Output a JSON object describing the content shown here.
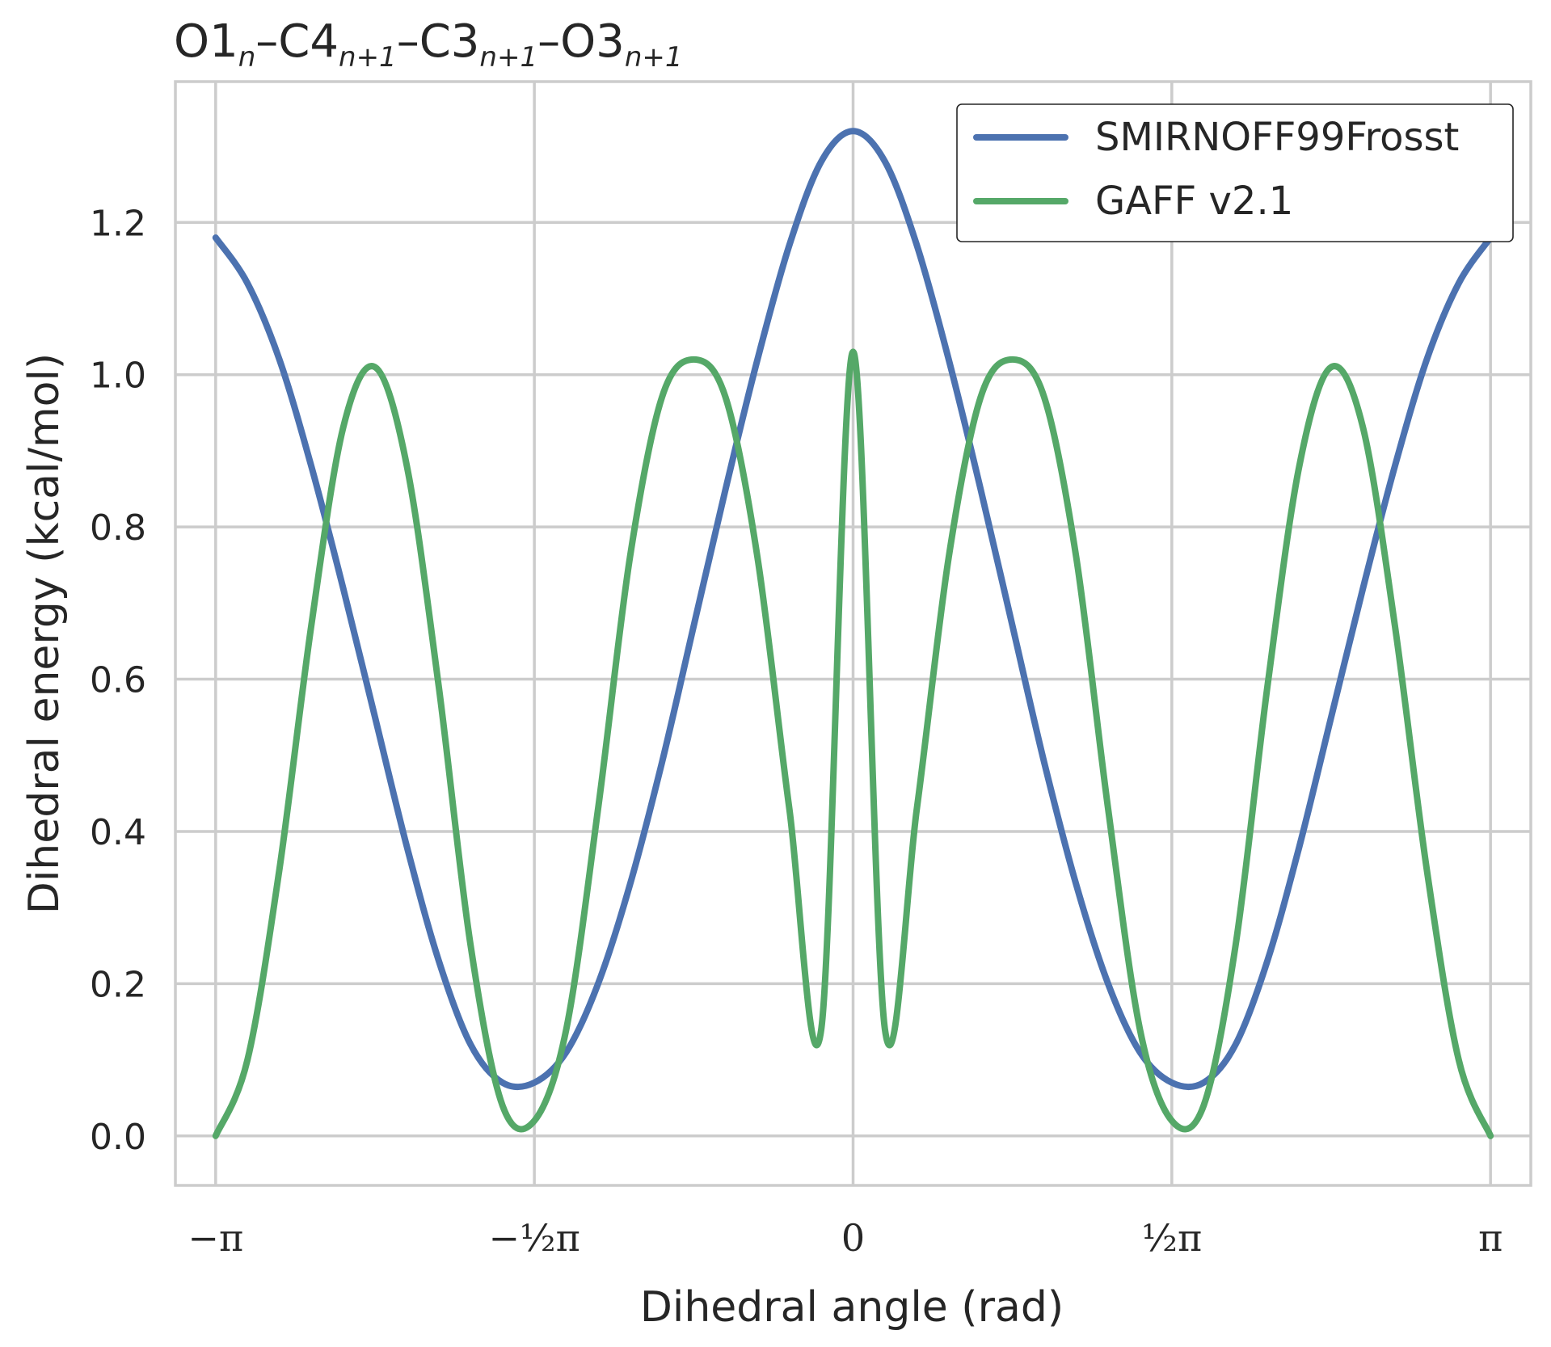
{
  "chart_data": {
    "type": "line",
    "title": {
      "parts": [
        {
          "text": "O1",
          "style": "normal"
        },
        {
          "text": "n",
          "style": "sub"
        },
        {
          "text": "–C4",
          "style": "normal"
        },
        {
          "text": "n+1",
          "style": "sub"
        },
        {
          "text": "–C3",
          "style": "normal"
        },
        {
          "text": "n+1",
          "style": "sub"
        },
        {
          "text": "–O3",
          "style": "normal"
        },
        {
          "text": "n+1",
          "style": "sub"
        }
      ]
    },
    "xlabel": "Dihedral angle (rad)",
    "ylabel": "Dihedral energy (kcal/mol)",
    "xlim": [
      -3.34,
      3.34
    ],
    "ylim": [
      -0.065,
      1.385
    ],
    "xticks": [
      {
        "value": -3.14159,
        "label": "−π"
      },
      {
        "value": -1.5708,
        "label": "−½π"
      },
      {
        "value": 0,
        "label": "0"
      },
      {
        "value": 1.5708,
        "label": "½π"
      },
      {
        "value": 3.14159,
        "label": "π"
      }
    ],
    "yticks": [
      {
        "value": 0.0,
        "label": "0.0"
      },
      {
        "value": 0.2,
        "label": "0.2"
      },
      {
        "value": 0.4,
        "label": "0.4"
      },
      {
        "value": 0.6,
        "label": "0.6"
      },
      {
        "value": 0.8,
        "label": "0.8"
      },
      {
        "value": 1.0,
        "label": "1.0"
      },
      {
        "value": 1.2,
        "label": "1.2"
      }
    ],
    "grid": true,
    "legend": {
      "placement": "top-right"
    },
    "series": [
      {
        "name": "SMIRNOFF99Frosst",
        "color": "#4c72b0",
        "x": [
          -3.1416,
          -2.9845,
          -2.8274,
          -2.6704,
          -2.5133,
          -2.3562,
          -2.1991,
          -2.042,
          -1.885,
          -1.7279,
          -1.5708,
          -1.4137,
          -1.2566,
          -1.0996,
          -0.9425,
          -0.7854,
          -0.6283,
          -0.4712,
          -0.3142,
          -0.1571,
          0.0,
          0.1571,
          0.3142,
          0.4712,
          0.6283,
          0.7854,
          0.9425,
          1.0996,
          1.2566,
          1.4137,
          1.5708,
          1.7279,
          1.885,
          2.042,
          2.1991,
          2.3562,
          2.5133,
          2.6704,
          2.8274,
          2.9845,
          3.1416
        ],
        "y": [
          1.18,
          1.12,
          1.02,
          0.88,
          0.72,
          0.55,
          0.38,
          0.23,
          0.12,
          0.07,
          0.07,
          0.11,
          0.2,
          0.33,
          0.49,
          0.67,
          0.85,
          1.02,
          1.17,
          1.28,
          1.32,
          1.28,
          1.17,
          1.02,
          0.85,
          0.67,
          0.49,
          0.33,
          0.2,
          0.11,
          0.07,
          0.07,
          0.12,
          0.23,
          0.38,
          0.55,
          0.72,
          0.88,
          1.02,
          1.12,
          1.18
        ]
      },
      {
        "name": "GAFF v2.1",
        "color": "#55a868",
        "x": [
          -3.1416,
          -2.9845,
          -2.8274,
          -2.6704,
          -2.5133,
          -2.3562,
          -2.1991,
          -2.042,
          -1.885,
          -1.7279,
          -1.5708,
          -1.4137,
          -1.2566,
          -1.0996,
          -0.9425,
          -0.7854,
          -0.6283,
          -0.4712,
          -0.3142,
          -0.1571,
          0.0,
          0.1571,
          0.3142,
          0.4712,
          0.6283,
          0.7854,
          0.9425,
          1.0996,
          1.2566,
          1.4137,
          1.5708,
          1.7279,
          1.885,
          2.042,
          2.1991,
          2.3562,
          2.5133,
          2.6704,
          2.8274,
          2.9845,
          3.1416
        ],
        "y": [
          0.0,
          0.1,
          0.35,
          0.67,
          0.93,
          1.01,
          0.88,
          0.59,
          0.25,
          0.04,
          0.02,
          0.14,
          0.43,
          0.76,
          0.97,
          1.02,
          0.97,
          0.76,
          0.43,
          0.14,
          1.03,
          0.14,
          0.43,
          0.76,
          0.97,
          1.02,
          0.97,
          0.76,
          0.43,
          0.14,
          0.02,
          0.04,
          0.25,
          0.59,
          0.88,
          1.01,
          0.93,
          0.67,
          0.35,
          0.1,
          0.0
        ]
      }
    ]
  }
}
